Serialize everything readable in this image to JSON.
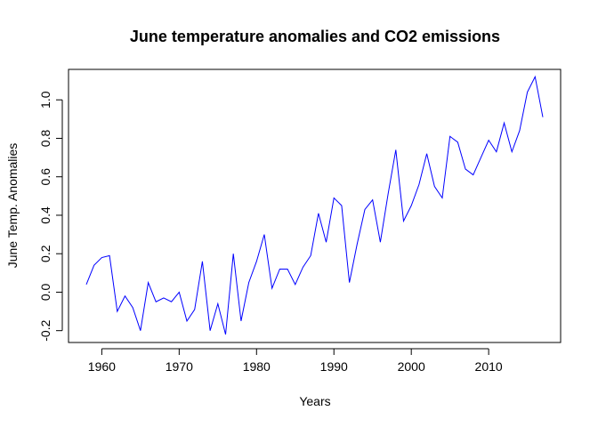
{
  "chart_data": {
    "type": "line",
    "title": "June temperature anomalies and CO2 emissions",
    "xlabel": "Years",
    "ylabel": "June Temp. Anomalies",
    "xlim": [
      1955.7,
      2019.3
    ],
    "ylim": [
      -0.2616,
      1.1584
    ],
    "x_ticks": [
      1960,
      1970,
      1980,
      1990,
      2000,
      2010
    ],
    "x_tick_labels": [
      "1960",
      "1970",
      "1980",
      "1990",
      "2000",
      "2010"
    ],
    "y_ticks": [
      -0.2,
      0.0,
      0.2,
      0.4,
      0.6,
      0.8,
      1.0
    ],
    "y_tick_labels": [
      "-0.2",
      "0.0",
      "0.2",
      "0.4",
      "0.6",
      "0.8",
      "1.0"
    ],
    "grid": false,
    "line_color": "#0000ff",
    "x": [
      1958,
      1959,
      1960,
      1961,
      1962,
      1963,
      1964,
      1965,
      1966,
      1967,
      1968,
      1969,
      1970,
      1971,
      1972,
      1973,
      1974,
      1975,
      1976,
      1977,
      1978,
      1979,
      1980,
      1981,
      1982,
      1983,
      1984,
      1985,
      1986,
      1987,
      1988,
      1989,
      1990,
      1991,
      1992,
      1993,
      1994,
      1995,
      1996,
      1997,
      1998,
      1999,
      2000,
      2001,
      2002,
      2003,
      2004,
      2005,
      2006,
      2007,
      2008,
      2009,
      2010,
      2011,
      2012,
      2013,
      2014,
      2015,
      2016,
      2017
    ],
    "y": [
      0.04,
      0.14,
      0.18,
      0.19,
      -0.1,
      -0.02,
      -0.08,
      -0.2,
      0.05,
      -0.05,
      -0.03,
      -0.05,
      0.0,
      -0.15,
      -0.09,
      0.16,
      -0.2,
      -0.06,
      -0.22,
      0.2,
      -0.15,
      0.05,
      0.16,
      0.3,
      0.02,
      0.12,
      0.12,
      0.04,
      0.13,
      0.19,
      0.41,
      0.26,
      0.49,
      0.45,
      0.05,
      0.25,
      0.43,
      0.48,
      0.26,
      0.51,
      0.74,
      0.37,
      0.45,
      0.56,
      0.72,
      0.55,
      0.49,
      0.81,
      0.78,
      0.64,
      0.61,
      0.7,
      0.79,
      0.73,
      0.88,
      0.73,
      0.84,
      1.04,
      1.12,
      0.91
    ]
  }
}
